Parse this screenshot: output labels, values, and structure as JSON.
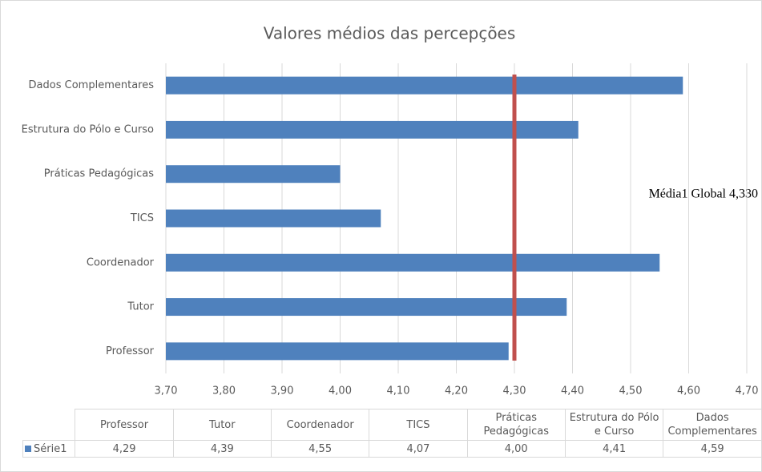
{
  "chart_data": {
    "type": "bar",
    "orientation": "horizontal",
    "title": "Valores médios das percepções",
    "categories": [
      "Professor",
      "Tutor",
      "Coordenador",
      "TICS",
      "Práticas Pedagógicas",
      "Estrutura do Pólo  e Curso",
      "Dados Complementares"
    ],
    "series": [
      {
        "name": "Série1",
        "color": "#4f81bd",
        "values": [
          4.29,
          4.39,
          4.55,
          4.07,
          4.0,
          4.41,
          4.59
        ],
        "value_labels": [
          "4,29",
          "4,39",
          "4,55",
          "4,07",
          "4,00",
          "4,41",
          "4,59"
        ]
      }
    ],
    "xlim": [
      3.7,
      4.7
    ],
    "xticks": [
      {
        "value": 3.7,
        "label": "3,70"
      },
      {
        "value": 3.8,
        "label": "3,80"
      },
      {
        "value": 3.9,
        "label": "3,90"
      },
      {
        "value": 4.0,
        "label": "4,00"
      },
      {
        "value": 4.1,
        "label": "4,10"
      },
      {
        "value": 4.2,
        "label": "4,20"
      },
      {
        "value": 4.3,
        "label": "4,30"
      },
      {
        "value": 4.4,
        "label": "4,40"
      },
      {
        "value": 4.5,
        "label": "4,50"
      },
      {
        "value": 4.6,
        "label": "4,60"
      },
      {
        "value": 4.7,
        "label": "4,70"
      }
    ],
    "grid": true,
    "reference_line": {
      "value": 4.3,
      "color": "#c0504d"
    },
    "annotation": "Média1 Global 4,330",
    "data_table": true
  }
}
